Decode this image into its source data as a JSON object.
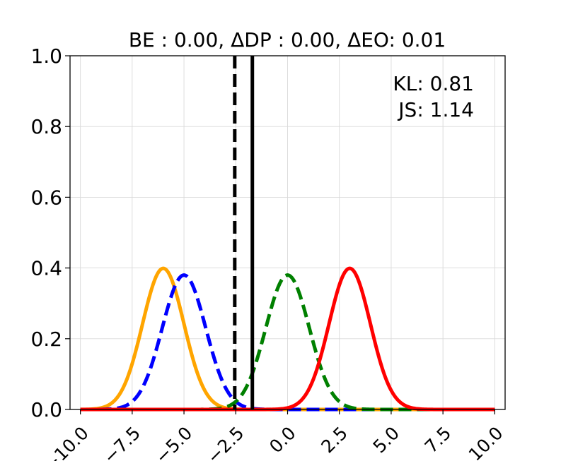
{
  "chart_data": {
    "type": "line",
    "title": "BE : 0.00, ΔDP : 0.00, ΔEO: 0.01",
    "xlabel": "",
    "ylabel": "",
    "xlim": [
      -10.5,
      10.5
    ],
    "ylim": [
      0.0,
      1.0
    ],
    "grid": true,
    "x_ticks": [
      -10.0,
      -7.5,
      -5.0,
      -2.5,
      0.0,
      2.5,
      5.0,
      7.5,
      10.0
    ],
    "x_tick_labels": [
      "−10.0",
      "−7.5",
      "−5.0",
      "−2.5",
      "0.0",
      "2.5",
      "5.0",
      "7.5",
      "10.0"
    ],
    "y_ticks": [
      0.0,
      0.2,
      0.4,
      0.6,
      0.8,
      1.0
    ],
    "y_tick_labels": [
      "0.0",
      "0.2",
      "0.4",
      "0.6",
      "0.8",
      "1.0"
    ],
    "annotations": [
      "KL: 0.81",
      "JS: 1.14"
    ],
    "x_range": [
      -10.0,
      10.0
    ],
    "series": [
      {
        "mean": -6.0,
        "std": 1.0,
        "color": "#ffa500",
        "style": "solid"
      },
      {
        "mean": -5.0,
        "std": 1.05,
        "color": "#0000ff",
        "style": "dashed"
      },
      {
        "mean": 0.0,
        "std": 1.05,
        "color": "#008000",
        "style": "dashed"
      },
      {
        "mean": 3.0,
        "std": 1.0,
        "color": "#ff0000",
        "style": "solid"
      }
    ],
    "vertical_lines": [
      {
        "x": -2.55,
        "color": "#000000",
        "style": "dashed"
      },
      {
        "x": -1.7,
        "color": "#000000",
        "style": "solid"
      }
    ]
  }
}
